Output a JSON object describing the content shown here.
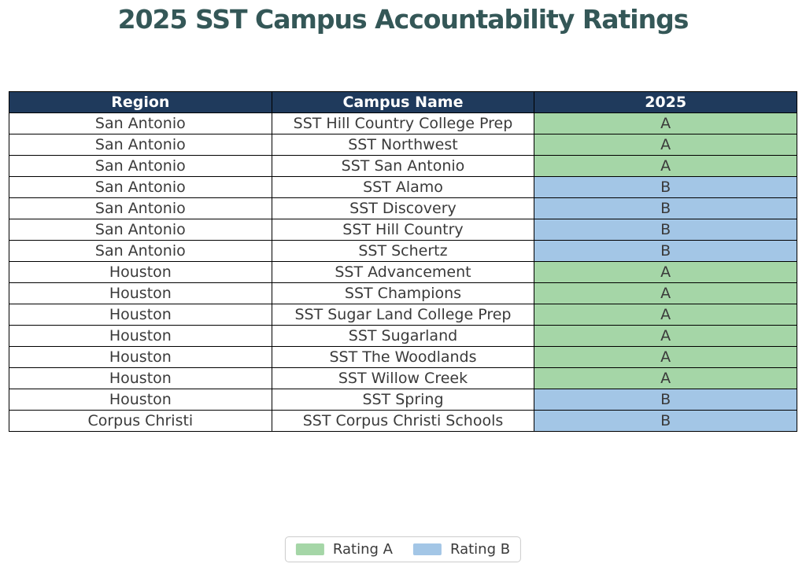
{
  "chart_data": {
    "type": "table",
    "title": "2025 SST Campus Accountability Ratings",
    "columns": [
      "Region",
      "Campus Name",
      "2025"
    ],
    "rows": [
      {
        "region": "San Antonio",
        "campus": "SST Hill Country College Prep",
        "rating": "A"
      },
      {
        "region": "San Antonio",
        "campus": "SST Northwest",
        "rating": "A"
      },
      {
        "region": "San Antonio",
        "campus": "SST San Antonio",
        "rating": "A"
      },
      {
        "region": "San Antonio",
        "campus": "SST Alamo",
        "rating": "B"
      },
      {
        "region": "San Antonio",
        "campus": "SST Discovery",
        "rating": "B"
      },
      {
        "region": "San Antonio",
        "campus": "SST Hill Country",
        "rating": "B"
      },
      {
        "region": "San Antonio",
        "campus": "SST Schertz",
        "rating": "B"
      },
      {
        "region": "Houston",
        "campus": "SST Advancement",
        "rating": "A"
      },
      {
        "region": "Houston",
        "campus": "SST Champions",
        "rating": "A"
      },
      {
        "region": "Houston",
        "campus": "SST Sugar Land College Prep",
        "rating": "A"
      },
      {
        "region": "Houston",
        "campus": "SST Sugarland",
        "rating": "A"
      },
      {
        "region": "Houston",
        "campus": "SST The Woodlands",
        "rating": "A"
      },
      {
        "region": "Houston",
        "campus": "SST Willow Creek",
        "rating": "A"
      },
      {
        "region": "Houston",
        "campus": "SST Spring",
        "rating": "B"
      },
      {
        "region": "Corpus Christi",
        "campus": "SST Corpus Christi Schools",
        "rating": "B"
      }
    ],
    "legend": {
      "position": "bottom-center",
      "items": [
        {
          "label": "Rating A",
          "color": "#a5d6a7"
        },
        {
          "label": "Rating B",
          "color": "#a3c6e6"
        }
      ]
    },
    "colors": {
      "title_text": "#345757",
      "header_bg": "#1f3a5c",
      "header_text": "#ffffff",
      "rating_a": "#a5d6a7",
      "rating_b": "#a3c6e6",
      "cell_text": "#3a3a3a",
      "grid_border": "#000000"
    }
  }
}
